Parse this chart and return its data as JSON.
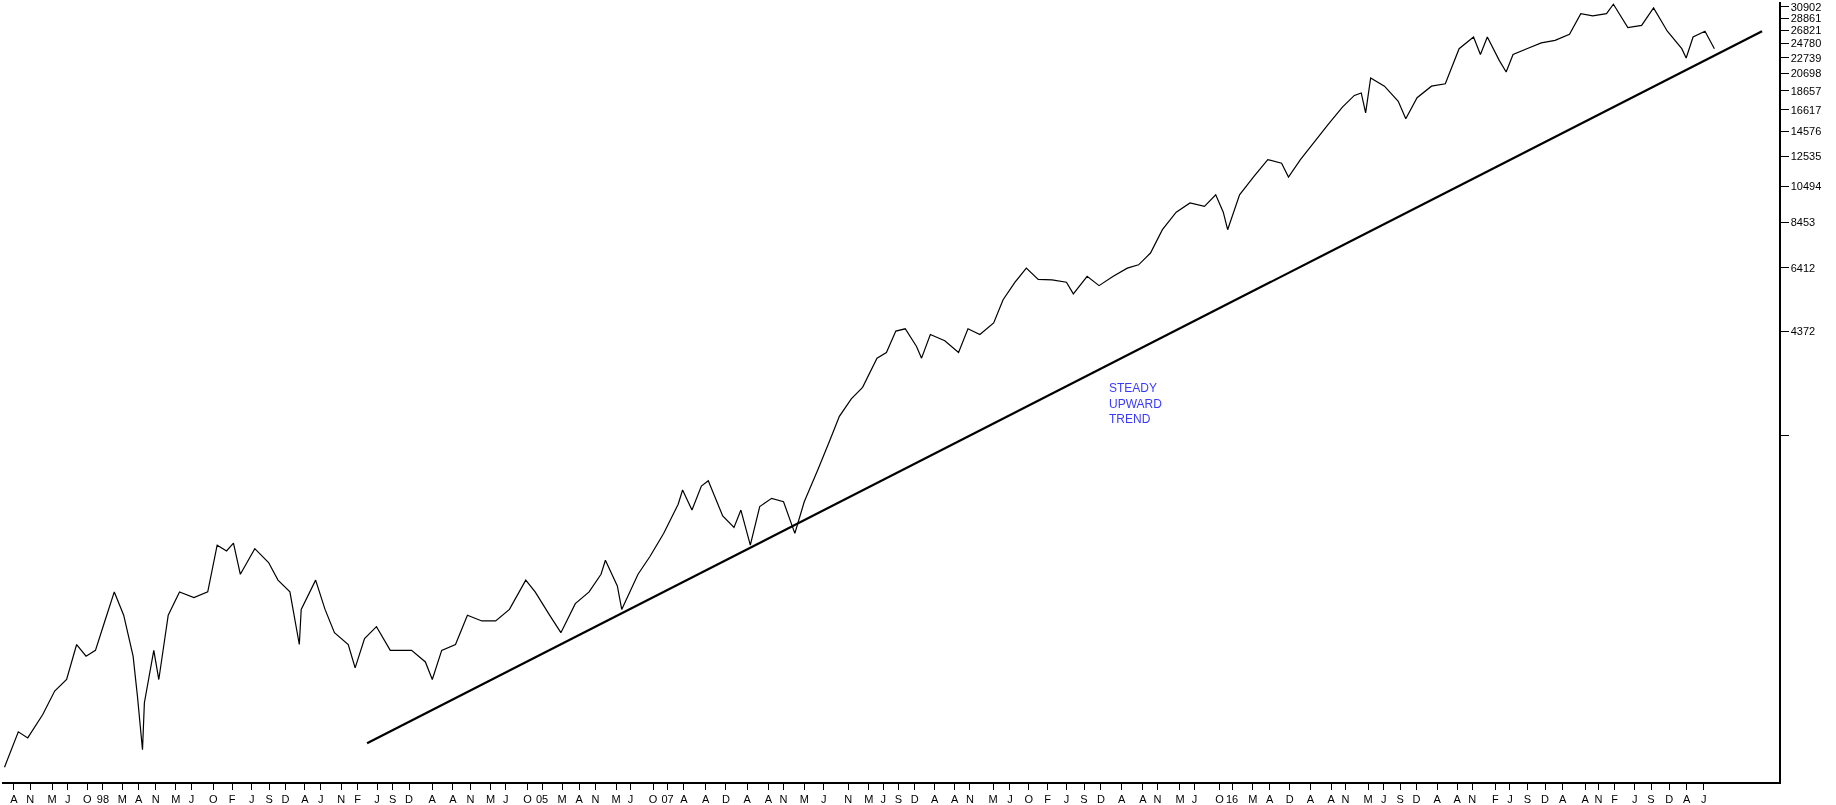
{
  "chart_data": {
    "type": "line",
    "log": "y",
    "grid": false,
    "marker": "none",
    "line_style": "solid",
    "annotations": [
      "STEADY\nUPWARD\nTREND"
    ],
    "xlim": [
      1996.39,
      2024.72
    ],
    "ylim": [
      289,
      31840
    ],
    "yticks": [
      {
        "value": 2331,
        "label": null
      },
      4372,
      6412,
      8453,
      10494,
      12535,
      14576,
      16617,
      18657,
      20698,
      22739,
      24780,
      26821,
      28861,
      30902
    ],
    "xticks": [
      {
        "value": 1996.58,
        "label": "A"
      },
      {
        "value": 1996.84,
        "label": "N"
      },
      {
        "value": 1997.19,
        "label": "M"
      },
      {
        "value": 1997.44,
        "label": "J"
      },
      {
        "value": 1997.75,
        "label": "O"
      },
      {
        "value": 1998.0,
        "label": "98"
      },
      {
        "value": 1998.31,
        "label": "M"
      },
      {
        "value": 1998.57,
        "label": "A"
      },
      {
        "value": 1998.84,
        "label": "N"
      },
      {
        "value": 1999.16,
        "label": "M"
      },
      {
        "value": 1999.41,
        "label": "J"
      },
      {
        "value": 1999.76,
        "label": "O"
      },
      {
        "value": 2000.06,
        "label": "F"
      },
      {
        "value": 2000.37,
        "label": "J"
      },
      {
        "value": 2000.65,
        "label": "S"
      },
      {
        "value": 2000.91,
        "label": "D"
      },
      {
        "value": 2001.22,
        "label": "A"
      },
      {
        "value": 2001.47,
        "label": "J"
      },
      {
        "value": 2001.8,
        "label": "N"
      },
      {
        "value": 2002.06,
        "label": "F"
      },
      {
        "value": 2002.37,
        "label": "J"
      },
      {
        "value": 2002.62,
        "label": "S"
      },
      {
        "value": 2002.88,
        "label": "D"
      },
      {
        "value": 2003.25,
        "label": "A"
      },
      {
        "value": 2003.58,
        "label": "A"
      },
      {
        "value": 2003.86,
        "label": "N"
      },
      {
        "value": 2004.18,
        "label": "M"
      },
      {
        "value": 2004.42,
        "label": "J"
      },
      {
        "value": 2004.77,
        "label": "O"
      },
      {
        "value": 2005.0,
        "label": "05"
      },
      {
        "value": 2005.32,
        "label": "M"
      },
      {
        "value": 2005.59,
        "label": "A"
      },
      {
        "value": 2005.85,
        "label": "N"
      },
      {
        "value": 2006.18,
        "label": "M"
      },
      {
        "value": 2006.41,
        "label": "J"
      },
      {
        "value": 2006.77,
        "label": "O"
      },
      {
        "value": 2007.0,
        "label": "07"
      },
      {
        "value": 2007.26,
        "label": "A"
      },
      {
        "value": 2007.61,
        "label": "A"
      },
      {
        "value": 2007.93,
        "label": "D"
      },
      {
        "value": 2008.27,
        "label": "A"
      },
      {
        "value": 2008.61,
        "label": "A"
      },
      {
        "value": 2008.85,
        "label": "N"
      },
      {
        "value": 2009.18,
        "label": "M"
      },
      {
        "value": 2009.49,
        "label": "J"
      },
      {
        "value": 2009.88,
        "label": "N"
      },
      {
        "value": 2010.21,
        "label": "M"
      },
      {
        "value": 2010.44,
        "label": "J"
      },
      {
        "value": 2010.68,
        "label": "S"
      },
      {
        "value": 2010.94,
        "label": "D"
      },
      {
        "value": 2011.26,
        "label": "A"
      },
      {
        "value": 2011.58,
        "label": "A"
      },
      {
        "value": 2011.82,
        "label": "N"
      },
      {
        "value": 2012.19,
        "label": "M"
      },
      {
        "value": 2012.46,
        "label": "J"
      },
      {
        "value": 2012.76,
        "label": "O"
      },
      {
        "value": 2013.06,
        "label": "F"
      },
      {
        "value": 2013.36,
        "label": "J"
      },
      {
        "value": 2013.64,
        "label": "S"
      },
      {
        "value": 2013.91,
        "label": "D"
      },
      {
        "value": 2014.24,
        "label": "A"
      },
      {
        "value": 2014.58,
        "label": "A"
      },
      {
        "value": 2014.81,
        "label": "N"
      },
      {
        "value": 2015.17,
        "label": "M"
      },
      {
        "value": 2015.4,
        "label": "J"
      },
      {
        "value": 2015.8,
        "label": "O"
      },
      {
        "value": 2016.0,
        "label": "16"
      },
      {
        "value": 2016.33,
        "label": "M"
      },
      {
        "value": 2016.6,
        "label": "A"
      },
      {
        "value": 2016.92,
        "label": "D"
      },
      {
        "value": 2017.25,
        "label": "A"
      },
      {
        "value": 2017.58,
        "label": "A"
      },
      {
        "value": 2017.81,
        "label": "N"
      },
      {
        "value": 2018.17,
        "label": "M"
      },
      {
        "value": 2018.42,
        "label": "J"
      },
      {
        "value": 2018.68,
        "label": "S"
      },
      {
        "value": 2018.94,
        "label": "D"
      },
      {
        "value": 2019.27,
        "label": "A"
      },
      {
        "value": 2019.59,
        "label": "A"
      },
      {
        "value": 2019.83,
        "label": "N"
      },
      {
        "value": 2020.2,
        "label": "F"
      },
      {
        "value": 2020.43,
        "label": "J"
      },
      {
        "value": 2020.71,
        "label": "S"
      },
      {
        "value": 2020.99,
        "label": "D"
      },
      {
        "value": 2021.27,
        "label": "A"
      },
      {
        "value": 2021.63,
        "label": "A"
      },
      {
        "value": 2021.84,
        "label": "N"
      },
      {
        "value": 2022.1,
        "label": "F"
      },
      {
        "value": 2022.42,
        "label": "J"
      },
      {
        "value": 2022.68,
        "label": "S"
      },
      {
        "value": 2022.97,
        "label": "D"
      },
      {
        "value": 2023.25,
        "label": "A"
      },
      {
        "value": 2023.52,
        "label": "J"
      }
    ],
    "series": [
      {
        "color": "#000000",
        "x": [
          1996.43,
          1996.65,
          1996.8,
          1997.04,
          1997.23,
          1997.42,
          1997.58,
          1997.73,
          1997.88,
          1998.03,
          1998.18,
          1998.33,
          1998.48,
          1998.55,
          1998.63,
          1998.66,
          1998.81,
          1998.89,
          1999.04,
          1999.22,
          1999.45,
          1999.67,
          1999.82,
          1999.97,
          2000.08,
          2000.19,
          2000.42,
          2000.64,
          2000.79,
          2000.98,
          2001.13,
          2001.16,
          2001.39,
          2001.54,
          2001.69,
          2001.91,
          2002.02,
          2002.17,
          2002.36,
          2002.58,
          2002.73,
          2002.92,
          2003.14,
          2003.25,
          2003.4,
          2003.62,
          2003.81,
          2004.04,
          2004.26,
          2004.48,
          2004.74,
          2004.89,
          2005.12,
          2005.3,
          2005.53,
          2005.75,
          2005.94,
          2006.01,
          2006.2,
          2006.27,
          2006.53,
          2006.72,
          2006.94,
          2007.17,
          2007.24,
          2007.39,
          2007.54,
          2007.65,
          2007.88,
          2008.06,
          2008.17,
          2008.32,
          2008.47,
          2008.66,
          2008.85,
          2009.03,
          2009.18,
          2009.4,
          2009.59,
          2009.74,
          2009.93,
          2010.11,
          2010.34,
          2010.49,
          2010.64,
          2010.79,
          2010.97,
          2011.05,
          2011.19,
          2011.42,
          2011.64,
          2011.79,
          2011.98,
          2012.2,
          2012.35,
          2012.54,
          2012.72,
          2012.91,
          2013.13,
          2013.36,
          2013.47,
          2013.69,
          2013.88,
          2014.1,
          2014.33,
          2014.51,
          2014.7,
          2014.89,
          2015.11,
          2015.33,
          2015.56,
          2015.74,
          2015.86,
          2015.93,
          2016.12,
          2016.34,
          2016.57,
          2016.79,
          2016.9,
          2017.09,
          2017.31,
          2017.53,
          2017.76,
          2017.95,
          2018.06,
          2018.13,
          2018.21,
          2018.43,
          2018.65,
          2018.77,
          2018.95,
          2019.18,
          2019.4,
          2019.62,
          2019.85,
          2019.96,
          2020.07,
          2020.26,
          2020.37,
          2020.48,
          2020.7,
          2020.93,
          2021.15,
          2021.38,
          2021.56,
          2021.75,
          2021.97,
          2022.08,
          2022.31,
          2022.53,
          2022.72,
          2022.94,
          2023.17,
          2023.24,
          2023.35,
          2023.54,
          2023.69
        ],
        "values": [
          316,
          391,
          377,
          434,
          500,
          536,
          662,
          617,
          639,
          763,
          909,
          790,
          617,
          483,
          351,
          466,
          639,
          536,
          790,
          909,
          878,
          909,
          1205,
          1164,
          1220,
          1011,
          1180,
          1085,
          976,
          909,
          662,
          818,
          976,
          818,
          711,
          662,
          575,
          686,
          737,
          639,
          639,
          639,
          596,
          536,
          639,
          662,
          790,
          763,
          763,
          818,
          976,
          909,
          790,
          711,
          847,
          909,
          1011,
          1100,
          942,
          818,
          1011,
          1125,
          1294,
          1542,
          1680,
          1489,
          1720,
          1776,
          1437,
          1340,
          1489,
          1205,
          1520,
          1598,
          1565,
          1294,
          1565,
          1905,
          2270,
          2620,
          2910,
          3120,
          3720,
          3850,
          4380,
          4440,
          3990,
          3720,
          4290,
          4130,
          3850,
          4440,
          4290,
          4600,
          5290,
          5880,
          6400,
          5980,
          5960,
          5880,
          5480,
          6090,
          5760,
          6090,
          6400,
          6530,
          7010,
          8070,
          8970,
          9480,
          9290,
          9960,
          8970,
          8070,
          9960,
          11080,
          12310,
          12050,
          11080,
          12310,
          13680,
          15210,
          16900,
          18130,
          18400,
          16320,
          20150,
          19170,
          17500,
          15750,
          17880,
          19170,
          19450,
          24030,
          25780,
          23200,
          25780,
          22400,
          20870,
          23200,
          24030,
          24890,
          25260,
          26200,
          29680,
          29280,
          29680,
          31410,
          27280,
          27660,
          30740,
          26700,
          24030,
          22710,
          25780,
          26700,
          24030
        ]
      },
      {
        "type": "line",
        "color": "#000000",
        "x": [
          2002.21,
          2024.45
        ],
        "values": [
          365,
          26700
        ]
      }
    ]
  }
}
